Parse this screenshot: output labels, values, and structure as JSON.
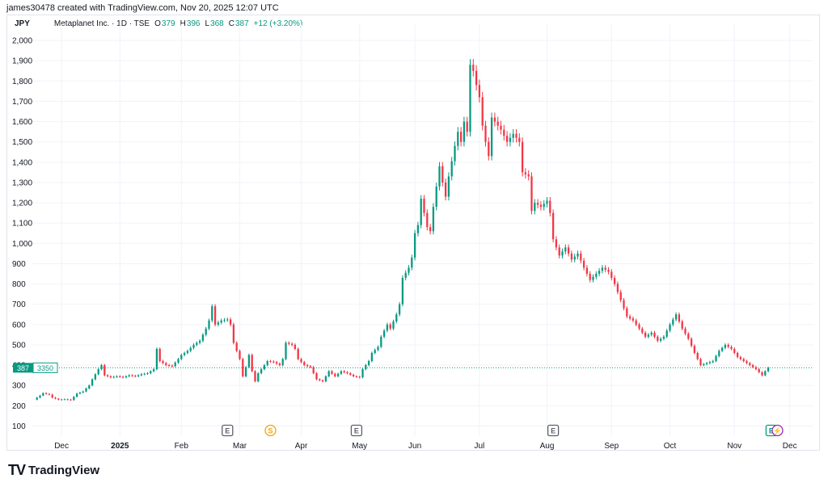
{
  "header": {
    "caption": "james30478 created with TradingView.com, Nov 20, 2025 12:07 UTC"
  },
  "legend": {
    "currency": "JPY",
    "symbol": "Metaplanet Inc. · 1D · TSE",
    "open_label": "O",
    "open": "379",
    "high_label": "H",
    "high": "396",
    "low_label": "L",
    "low": "368",
    "close_label": "C",
    "close": "387",
    "change": "+12 (+3.20%)"
  },
  "price_tag": {
    "price": "387",
    "countdown": "3350"
  },
  "events": [
    {
      "label": "E",
      "date_index": 63,
      "color": "#5d606b"
    },
    {
      "label": "S",
      "date_index": 77,
      "color": "#f0a30a"
    },
    {
      "label": "E",
      "date_index": 105,
      "color": "#5d606b"
    },
    {
      "label": "E",
      "date_index": 169,
      "color": "#5d606b"
    },
    {
      "label": "E",
      "date_index": 240,
      "color": "#089981"
    },
    {
      "label": "⚡",
      "date_index": 242,
      "color": "#9c27b0"
    }
  ],
  "brand": {
    "logo": "TV",
    "name": "TradingView"
  },
  "colors": {
    "up": "#089981",
    "down": "#f23645",
    "grid": "#f0f3fa",
    "text": "#131722"
  },
  "chart_data": {
    "type": "candlestick",
    "title": "Metaplanet Inc. · 1D · TSE",
    "ylabel": "JPY",
    "ylim": [
      100,
      2000
    ],
    "y_ticks": [
      100,
      200,
      300,
      400,
      500,
      600,
      700,
      800,
      900,
      1000,
      1100,
      1200,
      1300,
      1400,
      1500,
      1600,
      1700,
      1800,
      1900,
      2000
    ],
    "y_tick_labels": [
      "100",
      "200",
      "300",
      "400",
      "500",
      "600",
      "700",
      "800",
      "900",
      "1,000",
      "1,100",
      "1,200",
      "1,300",
      "1,400",
      "1,500",
      "1,600",
      "1,700",
      "1,800",
      "1,900",
      "2,000"
    ],
    "x_ticks": [
      {
        "label": "Dec",
        "date_index": 9,
        "bold": false
      },
      {
        "label": "2025",
        "date_index": 28,
        "bold": true
      },
      {
        "label": "Feb",
        "date_index": 48,
        "bold": false
      },
      {
        "label": "Mar",
        "date_index": 67,
        "bold": false
      },
      {
        "label": "Apr",
        "date_index": 87,
        "bold": false
      },
      {
        "label": "May",
        "date_index": 106,
        "bold": false
      },
      {
        "label": "Jun",
        "date_index": 124,
        "bold": false
      },
      {
        "label": "Jul",
        "date_index": 145,
        "bold": false
      },
      {
        "label": "Aug",
        "date_index": 167,
        "bold": false
      },
      {
        "label": "Sep",
        "date_index": 188,
        "bold": false
      },
      {
        "label": "Oct",
        "date_index": 207,
        "bold": false
      },
      {
        "label": "Nov",
        "date_index": 228,
        "bold": false
      },
      {
        "label": "Dec",
        "date_index": 246,
        "bold": false
      }
    ],
    "n_bars": 250,
    "last_price": 387,
    "close_series": [
      {
        "i": 0,
        "c": 230
      },
      {
        "i": 2,
        "c": 250
      },
      {
        "i": 3,
        "c": 262
      },
      {
        "i": 5,
        "c": 255
      },
      {
        "i": 6,
        "c": 240
      },
      {
        "i": 8,
        "c": 230
      },
      {
        "i": 10,
        "c": 232
      },
      {
        "i": 12,
        "c": 228
      },
      {
        "i": 14,
        "c": 260
      },
      {
        "i": 16,
        "c": 270
      },
      {
        "i": 18,
        "c": 300
      },
      {
        "i": 19,
        "c": 330
      },
      {
        "i": 21,
        "c": 380
      },
      {
        "i": 22,
        "c": 400
      },
      {
        "i": 23,
        "c": 350
      },
      {
        "i": 25,
        "c": 340
      },
      {
        "i": 27,
        "c": 345
      },
      {
        "i": 29,
        "c": 340
      },
      {
        "i": 31,
        "c": 350
      },
      {
        "i": 33,
        "c": 345
      },
      {
        "i": 35,
        "c": 355
      },
      {
        "i": 37,
        "c": 360
      },
      {
        "i": 39,
        "c": 380
      },
      {
        "i": 40,
        "c": 480
      },
      {
        "i": 41,
        "c": 420
      },
      {
        "i": 43,
        "c": 400
      },
      {
        "i": 45,
        "c": 395
      },
      {
        "i": 47,
        "c": 430
      },
      {
        "i": 48,
        "c": 450
      },
      {
        "i": 50,
        "c": 470
      },
      {
        "i": 52,
        "c": 500
      },
      {
        "i": 54,
        "c": 520
      },
      {
        "i": 56,
        "c": 580
      },
      {
        "i": 57,
        "c": 620
      },
      {
        "i": 58,
        "c": 690
      },
      {
        "i": 59,
        "c": 600
      },
      {
        "i": 61,
        "c": 620
      },
      {
        "i": 63,
        "c": 625
      },
      {
        "i": 64,
        "c": 600
      },
      {
        "i": 65,
        "c": 510
      },
      {
        "i": 67,
        "c": 430
      },
      {
        "i": 68,
        "c": 345
      },
      {
        "i": 69,
        "c": 390
      },
      {
        "i": 70,
        "c": 450
      },
      {
        "i": 71,
        "c": 370
      },
      {
        "i": 72,
        "c": 320
      },
      {
        "i": 73,
        "c": 360
      },
      {
        "i": 75,
        "c": 400
      },
      {
        "i": 76,
        "c": 420
      },
      {
        "i": 78,
        "c": 415
      },
      {
        "i": 80,
        "c": 400
      },
      {
        "i": 81,
        "c": 430
      },
      {
        "i": 82,
        "c": 510
      },
      {
        "i": 84,
        "c": 500
      },
      {
        "i": 85,
        "c": 480
      },
      {
        "i": 86,
        "c": 430
      },
      {
        "i": 88,
        "c": 400
      },
      {
        "i": 90,
        "c": 390
      },
      {
        "i": 92,
        "c": 330
      },
      {
        "i": 94,
        "c": 320
      },
      {
        "i": 96,
        "c": 370
      },
      {
        "i": 98,
        "c": 345
      },
      {
        "i": 100,
        "c": 370
      },
      {
        "i": 102,
        "c": 360
      },
      {
        "i": 104,
        "c": 345
      },
      {
        "i": 106,
        "c": 340
      },
      {
        "i": 107,
        "c": 380
      },
      {
        "i": 109,
        "c": 420
      },
      {
        "i": 110,
        "c": 460
      },
      {
        "i": 112,
        "c": 490
      },
      {
        "i": 113,
        "c": 540
      },
      {
        "i": 115,
        "c": 600
      },
      {
        "i": 116,
        "c": 580
      },
      {
        "i": 118,
        "c": 650
      },
      {
        "i": 119,
        "c": 700
      },
      {
        "i": 120,
        "c": 830
      },
      {
        "i": 122,
        "c": 880
      },
      {
        "i": 123,
        "c": 930
      },
      {
        "i": 124,
        "c": 1050
      },
      {
        "i": 125,
        "c": 1090
      },
      {
        "i": 126,
        "c": 1220
      },
      {
        "i": 127,
        "c": 1150
      },
      {
        "i": 128,
        "c": 1080
      },
      {
        "i": 129,
        "c": 1060
      },
      {
        "i": 130,
        "c": 1180
      },
      {
        "i": 131,
        "c": 1280
      },
      {
        "i": 132,
        "c": 1380
      },
      {
        "i": 133,
        "c": 1300
      },
      {
        "i": 134,
        "c": 1230
      },
      {
        "i": 135,
        "c": 1330
      },
      {
        "i": 137,
        "c": 1480
      },
      {
        "i": 138,
        "c": 1550
      },
      {
        "i": 139,
        "c": 1500
      },
      {
        "i": 140,
        "c": 1600
      },
      {
        "i": 141,
        "c": 1550
      },
      {
        "i": 142,
        "c": 1880
      },
      {
        "i": 143,
        "c": 1850
      },
      {
        "i": 144,
        "c": 1780
      },
      {
        "i": 145,
        "c": 1720
      },
      {
        "i": 146,
        "c": 1580
      },
      {
        "i": 147,
        "c": 1500
      },
      {
        "i": 148,
        "c": 1430
      },
      {
        "i": 149,
        "c": 1620
      },
      {
        "i": 150,
        "c": 1600
      },
      {
        "i": 152,
        "c": 1560
      },
      {
        "i": 154,
        "c": 1500
      },
      {
        "i": 156,
        "c": 1540
      },
      {
        "i": 158,
        "c": 1500
      },
      {
        "i": 159,
        "c": 1350
      },
      {
        "i": 161,
        "c": 1330
      },
      {
        "i": 162,
        "c": 1160
      },
      {
        "i": 163,
        "c": 1200
      },
      {
        "i": 165,
        "c": 1180
      },
      {
        "i": 167,
        "c": 1210
      },
      {
        "i": 168,
        "c": 1150
      },
      {
        "i": 169,
        "c": 1020
      },
      {
        "i": 171,
        "c": 940
      },
      {
        "i": 173,
        "c": 980
      },
      {
        "i": 175,
        "c": 920
      },
      {
        "i": 177,
        "c": 950
      },
      {
        "i": 179,
        "c": 880
      },
      {
        "i": 181,
        "c": 820
      },
      {
        "i": 183,
        "c": 850
      },
      {
        "i": 185,
        "c": 880
      },
      {
        "i": 187,
        "c": 860
      },
      {
        "i": 189,
        "c": 800
      },
      {
        "i": 191,
        "c": 720
      },
      {
        "i": 193,
        "c": 640
      },
      {
        "i": 195,
        "c": 620
      },
      {
        "i": 197,
        "c": 580
      },
      {
        "i": 199,
        "c": 540
      },
      {
        "i": 201,
        "c": 560
      },
      {
        "i": 203,
        "c": 520
      },
      {
        "i": 205,
        "c": 540
      },
      {
        "i": 207,
        "c": 600
      },
      {
        "i": 209,
        "c": 650
      },
      {
        "i": 211,
        "c": 580
      },
      {
        "i": 213,
        "c": 530
      },
      {
        "i": 215,
        "c": 460
      },
      {
        "i": 217,
        "c": 400
      },
      {
        "i": 219,
        "c": 410
      },
      {
        "i": 221,
        "c": 420
      },
      {
        "i": 223,
        "c": 470
      },
      {
        "i": 225,
        "c": 500
      },
      {
        "i": 227,
        "c": 480
      },
      {
        "i": 229,
        "c": 440
      },
      {
        "i": 231,
        "c": 420
      },
      {
        "i": 233,
        "c": 400
      },
      {
        "i": 235,
        "c": 380
      },
      {
        "i": 237,
        "c": 350
      },
      {
        "i": 238,
        "c": 370
      },
      {
        "i": 239,
        "c": 387
      }
    ]
  }
}
